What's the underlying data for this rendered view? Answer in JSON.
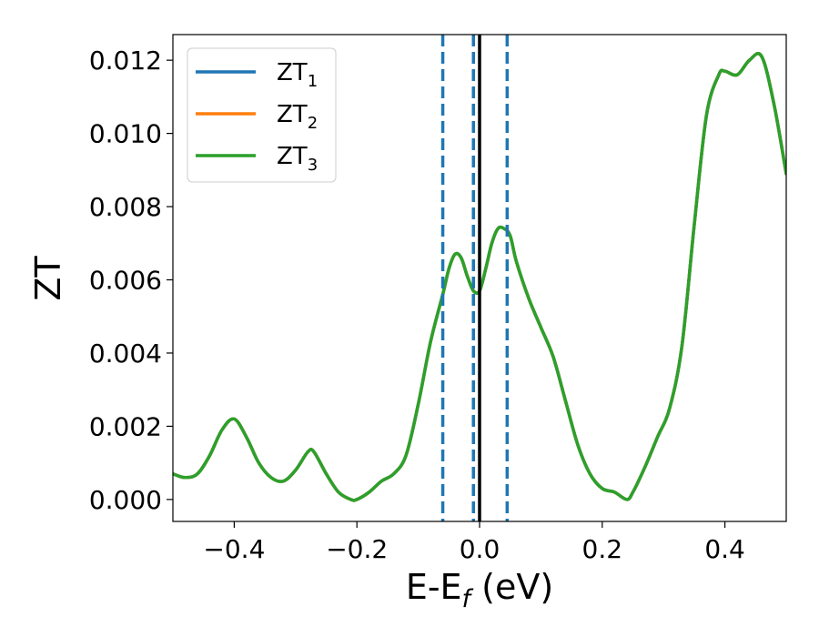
{
  "chart_data": {
    "type": "line",
    "xlabel": "E-E",
    "xlabel_subscript": "f",
    "xlabel_suffix": " (eV)",
    "ylabel": "ZT",
    "xlim": [
      -0.5,
      0.5
    ],
    "ylim": [
      -0.0006,
      0.0127
    ],
    "x_ticks": [
      -0.4,
      -0.2,
      0.0,
      0.2,
      0.4
    ],
    "x_tick_labels": [
      "−0.4",
      "−0.2",
      "0.0",
      "0.2",
      "0.4"
    ],
    "y_ticks": [
      0.0,
      0.002,
      0.004,
      0.006,
      0.008,
      0.01,
      0.012
    ],
    "y_tick_labels": [
      "0.000",
      "0.002",
      "0.004",
      "0.006",
      "0.008",
      "0.010",
      "0.012"
    ],
    "grid": false,
    "legend_position": "top-left",
    "vertical_lines": [
      {
        "x": -0.06,
        "style": "dashed",
        "color": "#1f77b4"
      },
      {
        "x": -0.01,
        "style": "dashed",
        "color": "#1f77b4"
      },
      {
        "x": 0.0,
        "style": "solid",
        "color": "#000000"
      },
      {
        "x": 0.045,
        "style": "dashed",
        "color": "#1f77b4"
      }
    ],
    "x": [
      -0.5,
      -0.48,
      -0.46,
      -0.44,
      -0.42,
      -0.4,
      -0.38,
      -0.36,
      -0.34,
      -0.32,
      -0.3,
      -0.28,
      -0.27,
      -0.25,
      -0.23,
      -0.21,
      -0.2,
      -0.18,
      -0.16,
      -0.14,
      -0.12,
      -0.1,
      -0.08,
      -0.06,
      -0.05,
      -0.04,
      -0.03,
      -0.02,
      -0.01,
      0.0,
      0.01,
      0.02,
      0.03,
      0.04,
      0.05,
      0.06,
      0.08,
      0.1,
      0.12,
      0.14,
      0.16,
      0.18,
      0.2,
      0.22,
      0.24,
      0.25,
      0.27,
      0.29,
      0.31,
      0.33,
      0.35,
      0.37,
      0.39,
      0.4,
      0.42,
      0.44,
      0.46,
      0.48,
      0.5
    ],
    "series": [
      {
        "name": "ZT",
        "name_subscript": "1",
        "color": "#1f77b4",
        "values": [
          0.0007,
          0.0006,
          0.0007,
          0.0012,
          0.0019,
          0.0022,
          0.0017,
          0.001,
          0.0006,
          0.0005,
          0.0008,
          0.0013,
          0.0013,
          0.0007,
          0.0002,
          0.0,
          0.0,
          0.0002,
          0.0005,
          0.0007,
          0.0012,
          0.0026,
          0.0043,
          0.0056,
          0.0063,
          0.0067,
          0.0066,
          0.0061,
          0.0057,
          0.0057,
          0.0063,
          0.007,
          0.0074,
          0.0074,
          0.0072,
          0.0065,
          0.0055,
          0.0047,
          0.0039,
          0.0027,
          0.0015,
          0.0007,
          0.0003,
          0.0002,
          0.0,
          0.0002,
          0.0009,
          0.0017,
          0.0025,
          0.0042,
          0.0075,
          0.0105,
          0.0116,
          0.0117,
          0.0116,
          0.012,
          0.0121,
          0.0108,
          0.0089
        ]
      },
      {
        "name": "ZT",
        "name_subscript": "2",
        "color": "#ff7f0e",
        "values": [
          0.0007,
          0.0006,
          0.0007,
          0.0012,
          0.0019,
          0.0022,
          0.0017,
          0.001,
          0.0006,
          0.0005,
          0.0008,
          0.0013,
          0.0013,
          0.0007,
          0.0002,
          0.0,
          0.0,
          0.0002,
          0.0005,
          0.0007,
          0.0012,
          0.0026,
          0.0043,
          0.0056,
          0.0063,
          0.0067,
          0.0066,
          0.0061,
          0.0057,
          0.0057,
          0.0063,
          0.007,
          0.0074,
          0.0074,
          0.0072,
          0.0065,
          0.0055,
          0.0047,
          0.0039,
          0.0027,
          0.0015,
          0.0007,
          0.0003,
          0.0002,
          0.0,
          0.0002,
          0.0009,
          0.0017,
          0.0025,
          0.0042,
          0.0075,
          0.0105,
          0.0116,
          0.0117,
          0.0116,
          0.012,
          0.0121,
          0.0108,
          0.0089
        ]
      },
      {
        "name": "ZT",
        "name_subscript": "3",
        "color": "#2ca02c",
        "values": [
          0.0007,
          0.0006,
          0.0007,
          0.0012,
          0.0019,
          0.0022,
          0.0017,
          0.001,
          0.0006,
          0.0005,
          0.0008,
          0.0013,
          0.0013,
          0.0007,
          0.0002,
          0.0,
          0.0,
          0.0002,
          0.0005,
          0.0007,
          0.0012,
          0.0026,
          0.0043,
          0.0056,
          0.0063,
          0.0067,
          0.0066,
          0.0061,
          0.0057,
          0.0057,
          0.0063,
          0.007,
          0.0074,
          0.0074,
          0.0072,
          0.0065,
          0.0055,
          0.0047,
          0.0039,
          0.0027,
          0.0015,
          0.0007,
          0.0003,
          0.0002,
          0.0,
          0.0002,
          0.0009,
          0.0017,
          0.0025,
          0.0042,
          0.0075,
          0.0105,
          0.0116,
          0.0117,
          0.0116,
          0.012,
          0.0121,
          0.0108,
          0.0089
        ]
      }
    ]
  }
}
